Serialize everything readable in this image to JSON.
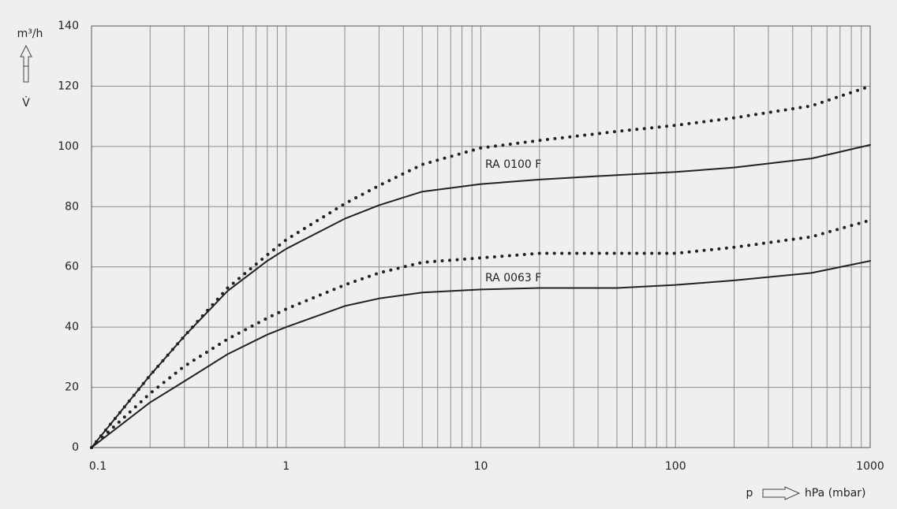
{
  "chart_data": {
    "type": "line",
    "y_unit_label": "m³/h",
    "y_symbol": "V̇",
    "x_symbol": "p",
    "x_unit_label": "hPa (mbar)",
    "xscale": "log",
    "xlim": [
      0.1,
      1000
    ],
    "xticks": [
      0.1,
      1,
      10,
      100,
      1000
    ],
    "xgrid": [
      0.2,
      0.3,
      0.4,
      0.5,
      0.6,
      0.7,
      0.8,
      0.9,
      2,
      3,
      4,
      5,
      6,
      7,
      8,
      9,
      20,
      30,
      40,
      50,
      60,
      70,
      80,
      90,
      200,
      300,
      400,
      500,
      600,
      700,
      800,
      900
    ],
    "ylim": [
      0,
      140
    ],
    "yticks": [
      0,
      20,
      40,
      60,
      80,
      100,
      120,
      140
    ],
    "grid": true,
    "x": [
      0.1,
      0.2,
      0.3,
      0.5,
      0.8,
      1,
      2,
      3,
      5,
      10,
      20,
      50,
      100,
      200,
      500,
      1000
    ],
    "series": [
      {
        "name": "RA 0100 F",
        "color": "#222222",
        "style": "solid",
        "values": [
          0,
          24,
          37,
          52,
          62,
          66,
          76,
          80.5,
          85,
          87.5,
          89,
          90.5,
          91.5,
          93,
          96,
          100.5
        ]
      },
      {
        "color": "#222222",
        "style": "dotted",
        "values": [
          0,
          24,
          37,
          53,
          64,
          69,
          81,
          87,
          94,
          99.5,
          102,
          105,
          107,
          109.5,
          113.5,
          120
        ]
      },
      {
        "name": "RA 0063 F",
        "color": "#222222",
        "style": "solid",
        "values": [
          0,
          15,
          22,
          31,
          37.5,
          40,
          47,
          49.5,
          51.5,
          52.5,
          53,
          53,
          54,
          55.5,
          58,
          62
        ]
      },
      {
        "color": "#222222",
        "style": "dotted",
        "values": [
          0,
          18,
          27,
          36,
          43,
          46,
          54,
          58,
          61.5,
          63,
          64.5,
          64.5,
          64.5,
          66.5,
          70,
          75.5
        ]
      }
    ]
  }
}
